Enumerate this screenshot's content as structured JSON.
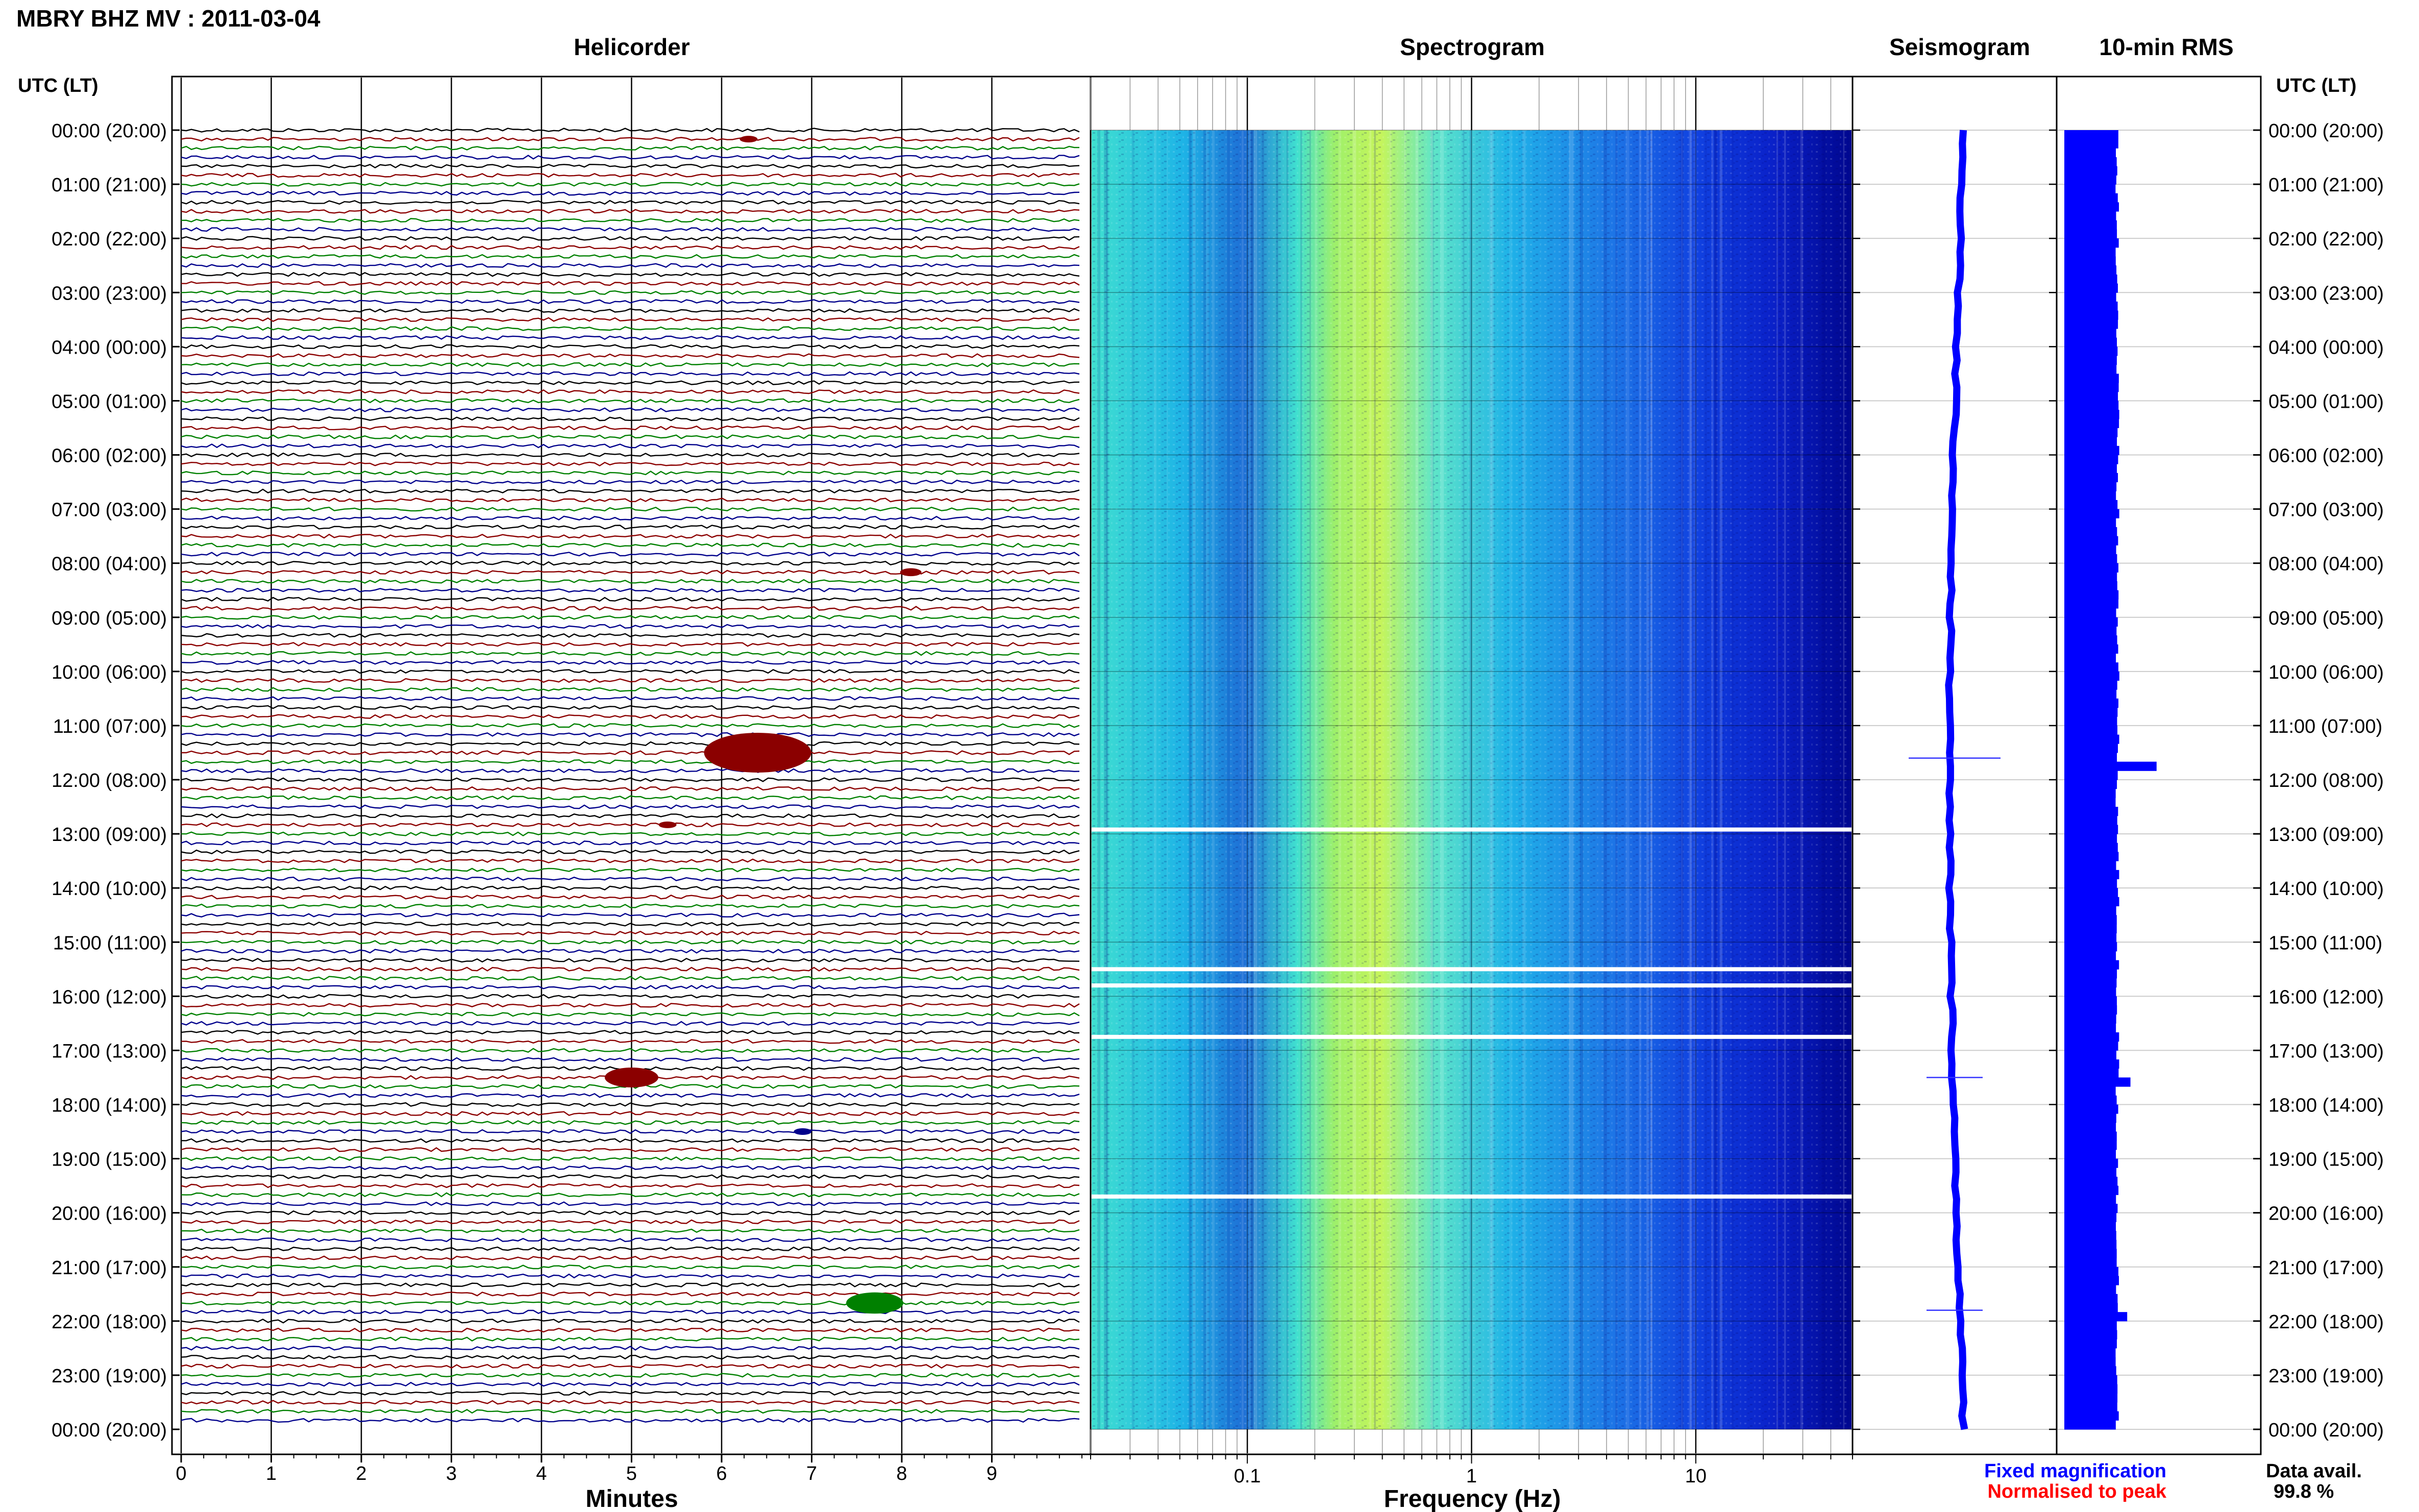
{
  "header": {
    "station_title": "MBRY BHZ MV : 2011-03-04"
  },
  "panels": {
    "helicorder": {
      "title": "Helicorder",
      "xlabel": "Minutes"
    },
    "spectrogram": {
      "title": "Spectrogram",
      "xlabel": "Frequency (Hz)"
    },
    "seismogram": {
      "title": "Seismogram"
    },
    "rms": {
      "title": "10-min RMS"
    }
  },
  "axis": {
    "time_label_left": "UTC (LT)",
    "time_label_right": "UTC (LT)",
    "hour_labels": [
      "00:00 (20:00)",
      "01:00 (21:00)",
      "02:00 (22:00)",
      "03:00 (23:00)",
      "04:00 (00:00)",
      "05:00 (01:00)",
      "06:00 (02:00)",
      "07:00 (03:00)",
      "08:00 (04:00)",
      "09:00 (05:00)",
      "10:00 (06:00)",
      "11:00 (07:00)",
      "12:00 (08:00)",
      "13:00 (09:00)",
      "14:00 (10:00)",
      "15:00 (11:00)",
      "16:00 (12:00)",
      "17:00 (13:00)",
      "18:00 (14:00)",
      "19:00 (15:00)",
      "20:00 (16:00)",
      "21:00 (17:00)",
      "22:00 (18:00)",
      "23:00 (19:00)",
      "00:00 (20:00)"
    ],
    "minute_ticks": [
      "0",
      "1",
      "2",
      "3",
      "4",
      "5",
      "6",
      "7",
      "8",
      "9"
    ],
    "freq_ticks": [
      "0.1",
      "1",
      "10"
    ]
  },
  "legend": {
    "fixed_magnification": "Fixed magnification",
    "normalised_to_peak": "Normalised to peak",
    "data_avail_label": "Data avail.",
    "data_avail_value": "99.8 %"
  },
  "colors": {
    "trace_cycle": [
      "#000000",
      "#8b0000",
      "#008000",
      "#00008b"
    ],
    "fixed_magnification": "#0000ff",
    "normalised_to_peak": "#ff0000",
    "rms_bar": "#0000ff"
  },
  "chart_data": {
    "type": "heatmap",
    "helicorder": {
      "x_unit": "minutes",
      "xlim": [
        0,
        10
      ],
      "lines_per_hour": 6,
      "n_lines": 144,
      "events": [
        {
          "line": 1,
          "minute": 6.3,
          "amp": 0.5
        },
        {
          "line": 49,
          "minute": 8.1,
          "amp": 0.6
        },
        {
          "line": 69,
          "minute": 6.4,
          "amp": 3.0
        },
        {
          "line": 77,
          "minute": 5.4,
          "amp": 0.5
        },
        {
          "line": 105,
          "minute": 5.0,
          "amp": 1.5
        },
        {
          "line": 111,
          "minute": 6.9,
          "amp": 0.5
        },
        {
          "line": 130,
          "minute": 7.7,
          "amp": 1.6
        }
      ]
    },
    "spectrogram": {
      "x_unit": "Hz",
      "x_scale": "log",
      "xlim": [
        0.02,
        50
      ],
      "colormap": [
        "#00008b",
        "#0000ff",
        "#1e90ff",
        "#00bfff",
        "#40e0d0",
        "#7fffd4",
        "#adff2f"
      ],
      "gap_hours": [
        12.92,
        15.5,
        15.8,
        16.75,
        19.7
      ]
    },
    "seismogram": {
      "events_hours": [
        11.6,
        17.5,
        21.8
      ]
    },
    "rms": {
      "interval_minutes": 10,
      "peaks": [
        {
          "hour": 11.6,
          "value": 2.2
        },
        {
          "hour": 17.5,
          "value": 1.4
        },
        {
          "hour": 21.8,
          "value": 1.3
        }
      ],
      "baseline": 1.0
    }
  }
}
